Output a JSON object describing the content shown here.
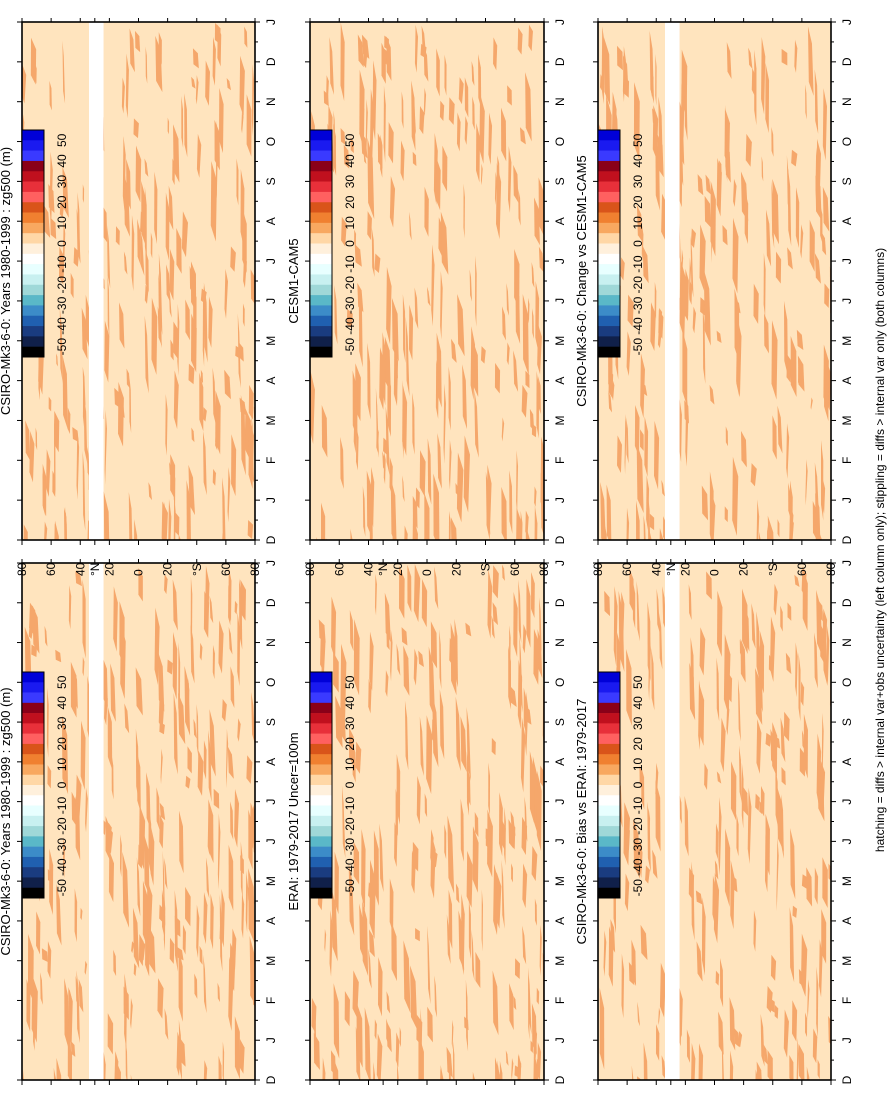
{
  "figure": {
    "footnote": "hatching = diffs > internal var+obs uncertainty (left column only); stippling = diffs > internal var only (both columns)"
  },
  "colors": {
    "frame": "#000000",
    "field_light": "#FFE4BE",
    "field_dark": "#F5A76B",
    "missing": "#FFFFFF"
  },
  "colorbar": {
    "labels": [
      "50",
      "40",
      "30",
      "20",
      "10",
      "0",
      "-10",
      "-20",
      "-30",
      "-40",
      "-50"
    ],
    "colors": [
      "#0000D8",
      "#1A1AF0",
      "#3A3AFF",
      "#8A0018",
      "#C0101E",
      "#E8303A",
      "#FF6060",
      "#D9541A",
      "#F08030",
      "#F8A860",
      "#FFD7A6",
      "#FFF0DC",
      "#FFFFFF",
      "#E8FFFF",
      "#C8F0F0",
      "#9FD8D8",
      "#5AB8C8",
      "#3C8CC8",
      "#2060B0",
      "#1A3C80",
      "#10204A",
      "#000000"
    ]
  },
  "chart_data": [
    {
      "type": "heatmap",
      "panel": "top-left",
      "title": "CSIRO-Mk3-6-0: Years 1980-1999 : zg500 (m)",
      "time_ticks": [
        "D",
        "J",
        "F",
        "M",
        "A",
        "M",
        "J",
        "J",
        "A",
        "S",
        "O",
        "N",
        "D",
        "J"
      ],
      "lat_ticks": [
        "80",
        "60",
        "40",
        "°N",
        "20",
        "0",
        "20",
        "°S",
        "60",
        "80"
      ],
      "missing_lat_band": [
        24,
        34
      ],
      "value_classes": [
        "0 to 10",
        "10 to 20"
      ],
      "legend_position": "right"
    },
    {
      "type": "heatmap",
      "panel": "top-right",
      "title": "CSIRO-Mk3-6-0: Years 1980-1999 : zg500 (m)",
      "time_ticks": [
        "D",
        "J",
        "F",
        "M",
        "A",
        "M",
        "J",
        "J",
        "A",
        "S",
        "O",
        "N",
        "D",
        "J"
      ],
      "lat_ticks": [
        "80",
        "60",
        "40",
        "°N",
        "20",
        "0",
        "20",
        "°S",
        "60",
        "80"
      ],
      "missing_lat_band": [
        24,
        34
      ],
      "value_classes": [
        "0 to 10",
        "10 to 20"
      ],
      "legend_position": "right"
    },
    {
      "type": "heatmap",
      "panel": "middle-left",
      "title": "ERAI: 1979-2017 Uncer=100m",
      "time_ticks": [
        "D",
        "J",
        "F",
        "M",
        "A",
        "M",
        "J",
        "J",
        "A",
        "S",
        "O",
        "N",
        "D",
        "J"
      ],
      "lat_ticks": [
        "80",
        "60",
        "40",
        "°N",
        "20",
        "0",
        "20",
        "°S",
        "60",
        "80"
      ],
      "missing_lat_band": null,
      "value_classes": [
        "0 to 10",
        "10 to 20"
      ],
      "legend_position": "right"
    },
    {
      "type": "heatmap",
      "panel": "middle-right",
      "title": "CESM1-CAM5",
      "time_ticks": [
        "D",
        "J",
        "F",
        "M",
        "A",
        "M",
        "J",
        "J",
        "A",
        "S",
        "O",
        "N",
        "D",
        "J"
      ],
      "lat_ticks": [
        "80",
        "60",
        "40",
        "°N",
        "20",
        "0",
        "20",
        "°S",
        "60",
        "80"
      ],
      "missing_lat_band": null,
      "value_classes": [
        "0 to 10",
        "10 to 20"
      ],
      "legend_position": "right"
    },
    {
      "type": "heatmap",
      "panel": "bottom-left",
      "title": "CSIRO-Mk3-6-0: Bias vs ERAI: 1979-2017",
      "time_ticks": [
        "D",
        "J",
        "F",
        "M",
        "A",
        "M",
        "J",
        "J",
        "A",
        "S",
        "O",
        "N",
        "D",
        "J"
      ],
      "lat_ticks": [
        "80",
        "60",
        "40",
        "°N",
        "20",
        "0",
        "20",
        "°S",
        "60",
        "80"
      ],
      "missing_lat_band": [
        24,
        34
      ],
      "value_classes": [
        "0 to 10",
        "10 to 20"
      ],
      "legend_position": "right"
    },
    {
      "type": "heatmap",
      "panel": "bottom-right",
      "title": "CSIRO-Mk3-6-0: Change vs CESM1-CAM5",
      "time_ticks": [
        "D",
        "J",
        "F",
        "M",
        "A",
        "M",
        "J",
        "J",
        "A",
        "S",
        "O",
        "N",
        "D",
        "J"
      ],
      "lat_ticks": [
        "80",
        "60",
        "40",
        "°N",
        "20",
        "0",
        "20",
        "°S",
        "60",
        "80"
      ],
      "missing_lat_band": [
        24,
        34
      ],
      "value_classes": [
        "0 to 10",
        "10 to 20"
      ],
      "legend_position": "right"
    }
  ]
}
